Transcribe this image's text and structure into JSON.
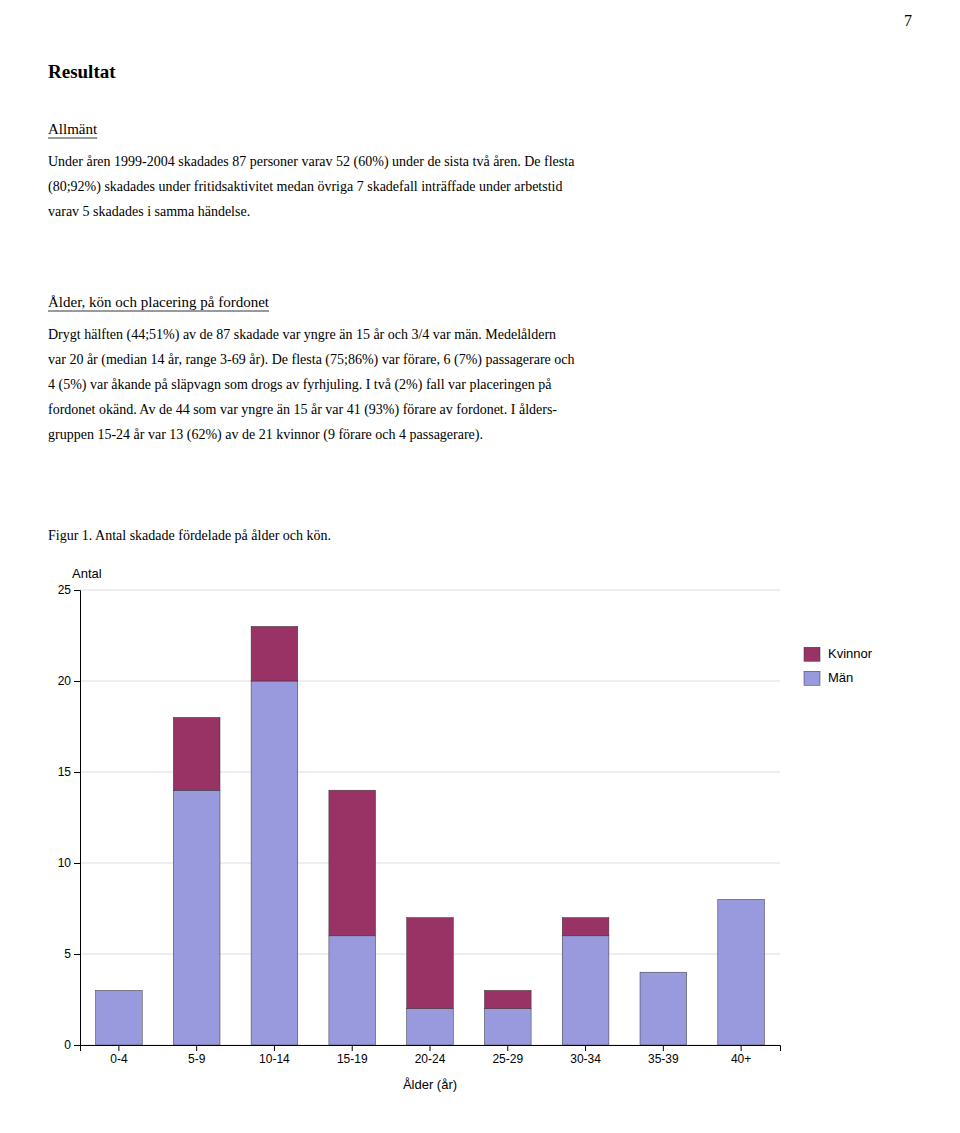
{
  "page_number": "7",
  "heading": "Resultat",
  "sections": [
    {
      "heading": "Allmänt",
      "lines": [
        "Under åren 1999-2004 skadades 87 personer varav 52 (60%) under de sista två åren. De flesta",
        "(80;92%) skadades under fritidsaktivitet medan övriga 7 skadefall inträffade under arbetstid",
        "varav 5 skadades i samma händelse."
      ]
    },
    {
      "heading": "Ålder, kön och placering på fordonet",
      "lines": [
        "Drygt hälften (44;51%) av de 87 skadade var yngre än 15 år och 3/4 var män. Medelåldern",
        "var 20 år (median 14 år, range 3-69 år). De flesta (75;86%) var förare, 6 (7%) passagerare och",
        "4 (5%) var åkande på släpvagn som drogs av fyrhjuling. I två (2%) fall var placeringen på",
        "fordonet okänd. Av de 44 som var yngre än 15 år var 41 (93%) förare av fordonet. I ålders-",
        "gruppen 15-24 år var 13 (62%) av de 21 kvinnor (9 förare och 4 passagerare)."
      ]
    }
  ],
  "chart_data": {
    "type": "bar",
    "title": "Figur 1. Antal skadade fördelade på ålder och kön.",
    "xlabel": "Ålder (år)",
    "ylabel": "Antal",
    "categories": [
      "0-4",
      "5-9",
      "10-14",
      "15-19",
      "20-24",
      "25-29",
      "30-34",
      "35-39",
      "40+"
    ],
    "series": [
      {
        "name": "Män",
        "color": "#9999dd",
        "values": [
          3,
          14,
          20,
          6,
          2,
          2,
          6,
          4,
          8
        ]
      },
      {
        "name": "Kvinnor",
        "color": "#993366",
        "values": [
          0,
          4,
          3,
          8,
          5,
          1,
          1,
          0,
          0
        ]
      }
    ],
    "stacked": true,
    "ylim": [
      0,
      25
    ],
    "yticks": [
      0,
      5,
      10,
      15,
      20,
      25
    ],
    "grid": true,
    "legend": "right"
  }
}
